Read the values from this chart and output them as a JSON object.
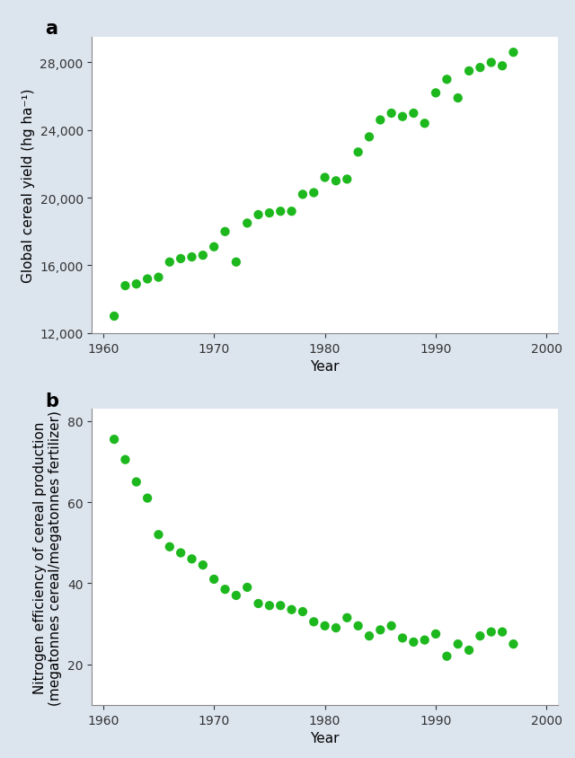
{
  "panel_a": {
    "years": [
      1961,
      1962,
      1963,
      1964,
      1965,
      1966,
      1967,
      1968,
      1969,
      1970,
      1971,
      1972,
      1973,
      1974,
      1975,
      1976,
      1977,
      1978,
      1979,
      1980,
      1981,
      1982,
      1983,
      1984,
      1985,
      1986,
      1987,
      1988,
      1989,
      1990,
      1991,
      1992,
      1993,
      1994,
      1995,
      1996,
      1997
    ],
    "yields": [
      13000,
      14800,
      14900,
      15200,
      15300,
      16200,
      16400,
      16500,
      16600,
      17100,
      18000,
      16200,
      18500,
      19000,
      19100,
      19200,
      19200,
      20200,
      20300,
      21200,
      21000,
      21100,
      22700,
      23600,
      24600,
      25000,
      24800,
      25000,
      24400,
      26200,
      27000,
      25900,
      27500,
      27700,
      28000,
      27800,
      28600
    ],
    "ylabel": "Global cereal yield (hg ha⁻¹)",
    "xlabel": "Year",
    "ylim": [
      12000,
      29500
    ],
    "xlim": [
      1959,
      2001
    ],
    "yticks": [
      12000,
      16000,
      20000,
      24000,
      28000
    ],
    "xticks": [
      1960,
      1970,
      1980,
      1990,
      2000
    ]
  },
  "panel_b": {
    "years": [
      1961,
      1962,
      1963,
      1964,
      1965,
      1966,
      1967,
      1968,
      1969,
      1970,
      1971,
      1972,
      1973,
      1974,
      1975,
      1976,
      1977,
      1978,
      1979,
      1980,
      1981,
      1982,
      1983,
      1984,
      1985,
      1986,
      1987,
      1988,
      1989,
      1990,
      1991,
      1992,
      1993,
      1994,
      1995,
      1996,
      1997
    ],
    "efficiency": [
      75.5,
      70.5,
      65.0,
      61.0,
      52.0,
      49.0,
      47.5,
      46.0,
      44.5,
      41.0,
      38.5,
      37.0,
      39.0,
      35.0,
      34.5,
      34.5,
      33.5,
      33.0,
      30.5,
      29.5,
      29.0,
      31.5,
      29.5,
      27.0,
      28.5,
      29.5,
      26.5,
      25.5,
      26.0,
      27.5,
      22.0,
      25.0,
      23.5,
      27.0,
      28.0,
      28.0,
      25.0
    ],
    "ylabel": "Nitrogen efficiency of cereal production\n(megatonnes cereal/megatonnes fertilizer)",
    "xlabel": "Year",
    "ylim": [
      10,
      83
    ],
    "xlim": [
      1959,
      2001
    ],
    "yticks": [
      20,
      40,
      60,
      80
    ],
    "xticks": [
      1960,
      1970,
      1980,
      1990,
      2000
    ]
  },
  "dot_color": "#1db81d",
  "dot_size": 55,
  "bg_color": "#dce4ee",
  "panel_bg": "#ffffff",
  "label_fontsize": 11,
  "tick_fontsize": 10,
  "panel_label_fontsize": 15
}
